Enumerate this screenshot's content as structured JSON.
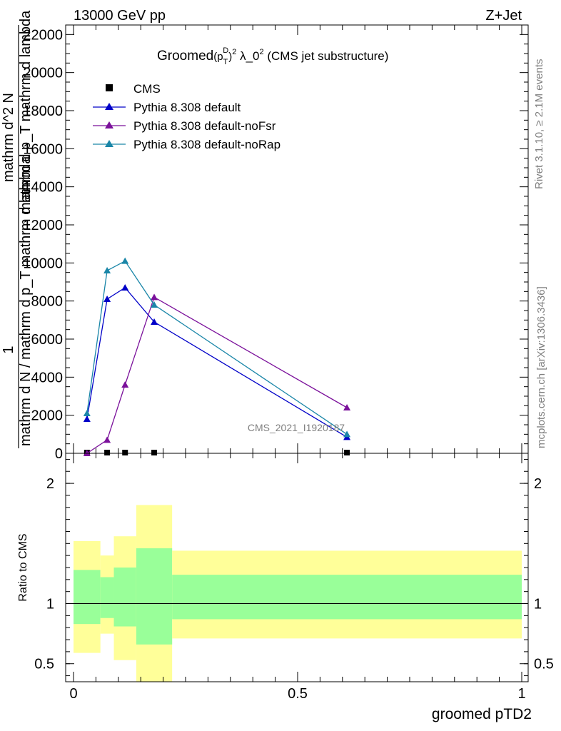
{
  "header": {
    "energy_label": "13000 GeV pp",
    "process_label": "Z+Jet"
  },
  "side_labels": {
    "rivet": "Rivet 3.1.10, ≥ 2.1M events",
    "mcplots": "mcplots.cern.ch [arXiv:1306.3436]"
  },
  "watermark": "CMS_2021_I1920187",
  "colors": {
    "cms": "#000000",
    "default": "#0000c8",
    "noFsr": "#7b119b",
    "noRap": "#1a86a8",
    "band_inner": "#99ff99",
    "band_outer": "#ffff99"
  },
  "chart_data": [
    {
      "type": "line",
      "title": "Groomed(p_T^D)^2 λ_0^2 (CMS jet substructure)",
      "title_parts": {
        "main": "Groomed",
        "paren_open": "(p",
        "sub_T": "T",
        "sup_D": "D",
        "paren_close": ")",
        "sup_2": "2",
        "lambda": " λ_0",
        "sup_lambda": "2",
        "suffix": " (CMS jet substructure)"
      },
      "ylabel_lines": [
        "1",
        "mathrm d N / mathrm d p_T mathrm d lambda",
        "mathrm d^2 N",
        "mathrm d p_T mathrm d lambda"
      ],
      "xlim": [
        0,
        1
      ],
      "ylim": [
        0,
        22500
      ],
      "yticks": [
        "0",
        "2000",
        "4000",
        "6000",
        "8000",
        "10000",
        "12000",
        "14000",
        "16000",
        "18000",
        "20000",
        "22000"
      ],
      "ytick_values": [
        0,
        2000,
        4000,
        6000,
        8000,
        10000,
        12000,
        14000,
        16000,
        18000,
        20000,
        22000
      ],
      "legend_position": "top-left",
      "series": [
        {
          "name": "CMS",
          "key": "cms",
          "marker": "square",
          "x": [
            0.03,
            0.075,
            0.115,
            0.18,
            0.61
          ],
          "y": [
            0,
            0,
            0,
            0,
            0
          ]
        },
        {
          "name": "Pythia 8.308 default",
          "key": "default",
          "marker": "triangle",
          "x": [
            0.03,
            0.075,
            0.115,
            0.18,
            0.61
          ],
          "y": [
            1800,
            8100,
            8700,
            6900,
            850
          ]
        },
        {
          "name": "Pythia 8.308 default-noFsr",
          "key": "noFsr",
          "marker": "triangle",
          "x": [
            0.03,
            0.075,
            0.115,
            0.18,
            0.61
          ],
          "y": [
            0,
            700,
            3600,
            8200,
            2400
          ]
        },
        {
          "name": "Pythia 8.308 default-noRap",
          "key": "noRap",
          "marker": "triangle",
          "x": [
            0.03,
            0.075,
            0.115,
            0.18,
            0.61
          ],
          "y": [
            2100,
            9600,
            10100,
            7800,
            1000
          ]
        }
      ]
    },
    {
      "type": "area",
      "ylabel": "Ratio to CMS",
      "xlabel": "groomed pTD2",
      "xlim": [
        0,
        1
      ],
      "ylim": [
        0.35,
        2.25
      ],
      "xticks": [
        "0",
        "0.5",
        "1"
      ],
      "xtick_values": [
        0,
        0.5,
        1
      ],
      "yticks": [
        "0.5",
        "1",
        "2"
      ],
      "ytick_values": [
        0.5,
        1,
        2
      ],
      "reference_line": 1,
      "bins": [
        {
          "lo": 0.0,
          "hi": 0.06,
          "inner": [
            0.83,
            1.28
          ],
          "outer": [
            0.59,
            1.52
          ]
        },
        {
          "lo": 0.06,
          "hi": 0.09,
          "inner": [
            0.88,
            1.22
          ],
          "outer": [
            0.75,
            1.4
          ]
        },
        {
          "lo": 0.09,
          "hi": 0.14,
          "inner": [
            0.81,
            1.3
          ],
          "outer": [
            0.53,
            1.56
          ]
        },
        {
          "lo": 0.14,
          "hi": 0.22,
          "inner": [
            0.66,
            1.46
          ],
          "outer": [
            0.35,
            1.82
          ]
        },
        {
          "lo": 0.22,
          "hi": 1.0,
          "inner": [
            0.87,
            1.24
          ],
          "outer": [
            0.71,
            1.44
          ]
        }
      ]
    }
  ]
}
